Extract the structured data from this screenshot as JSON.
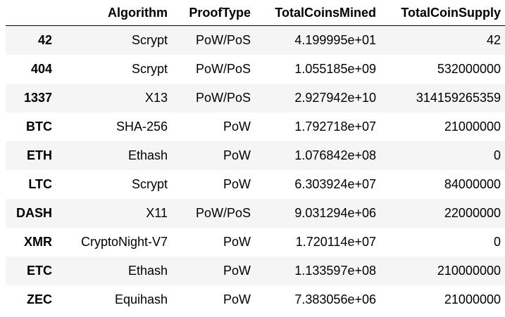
{
  "table": {
    "columns": [
      {
        "key": "index",
        "label": ""
      },
      {
        "key": "algorithm",
        "label": "Algorithm"
      },
      {
        "key": "proof_type",
        "label": "ProofType"
      },
      {
        "key": "total_coins_mined",
        "label": "TotalCoinsMined"
      },
      {
        "key": "total_coin_supply",
        "label": "TotalCoinSupply"
      }
    ],
    "rows": [
      {
        "index": "42",
        "algorithm": "Scrypt",
        "proof_type": "PoW/PoS",
        "total_coins_mined": "4.199995e+01",
        "total_coin_supply": "42"
      },
      {
        "index": "404",
        "algorithm": "Scrypt",
        "proof_type": "PoW/PoS",
        "total_coins_mined": "1.055185e+09",
        "total_coin_supply": "532000000"
      },
      {
        "index": "1337",
        "algorithm": "X13",
        "proof_type": "PoW/PoS",
        "total_coins_mined": "2.927942e+10",
        "total_coin_supply": "314159265359"
      },
      {
        "index": "BTC",
        "algorithm": "SHA-256",
        "proof_type": "PoW",
        "total_coins_mined": "1.792718e+07",
        "total_coin_supply": "21000000"
      },
      {
        "index": "ETH",
        "algorithm": "Ethash",
        "proof_type": "PoW",
        "total_coins_mined": "1.076842e+08",
        "total_coin_supply": "0"
      },
      {
        "index": "LTC",
        "algorithm": "Scrypt",
        "proof_type": "PoW",
        "total_coins_mined": "6.303924e+07",
        "total_coin_supply": "84000000"
      },
      {
        "index": "DASH",
        "algorithm": "X11",
        "proof_type": "PoW/PoS",
        "total_coins_mined": "9.031294e+06",
        "total_coin_supply": "22000000"
      },
      {
        "index": "XMR",
        "algorithm": "CryptoNight-V7",
        "proof_type": "PoW",
        "total_coins_mined": "1.720114e+07",
        "total_coin_supply": "0"
      },
      {
        "index": "ETC",
        "algorithm": "Ethash",
        "proof_type": "PoW",
        "total_coins_mined": "1.133597e+08",
        "total_coin_supply": "210000000"
      },
      {
        "index": "ZEC",
        "algorithm": "Equihash",
        "proof_type": "PoW",
        "total_coins_mined": "7.383056e+06",
        "total_coin_supply": "21000000"
      }
    ]
  },
  "colors": {
    "stripe": "#f5f5f5",
    "background": "#ffffff",
    "header_rule": "#000000"
  }
}
